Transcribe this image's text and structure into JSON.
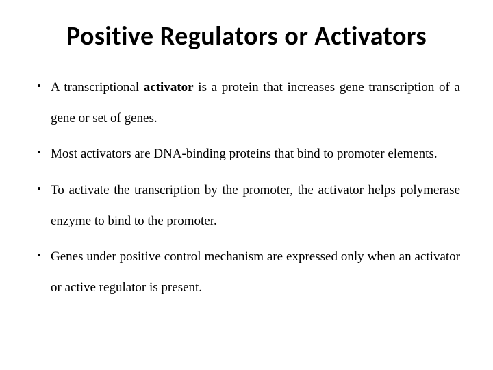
{
  "title": "Positive Regulators or Activators",
  "bullets": [
    {
      "pre": "A transcriptional ",
      "bold": "activator",
      "post": " is a protein that increases gene transcription of a gene or set of genes."
    },
    {
      "pre": "Most activators are DNA-binding proteins that bind to promoter elements.",
      "bold": "",
      "post": ""
    },
    {
      "pre": "To activate the transcription by the promoter, the activator helps polymerase enzyme to bind to the promoter.",
      "bold": "",
      "post": ""
    },
    {
      "pre": "Genes under positive control mechanism are expressed only when an activator or active regulator is present.",
      "bold": "",
      "post": ""
    }
  ],
  "colors": {
    "background": "#ffffff",
    "text": "#000000"
  },
  "typography": {
    "title_font": "Calibri",
    "title_size_pt": 38,
    "title_weight": 700,
    "body_font": "Times New Roman",
    "body_size_pt": 19,
    "line_height": 2.35
  }
}
